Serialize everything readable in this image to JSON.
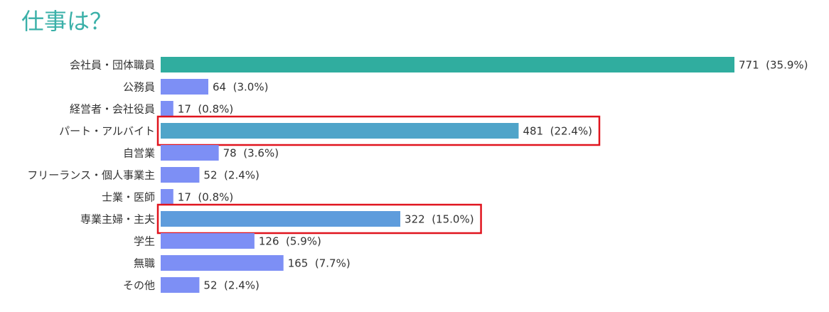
{
  "chart_data": {
    "type": "bar",
    "orientation": "horizontal",
    "title": "仕事は？",
    "categories": [
      "会社員・団体職員",
      "公務員",
      "経営者・会社役員",
      "パート・アルバイト",
      "自営業",
      "フリーランス・個人事業主",
      "士業・医師",
      "専業主婦・主夫",
      "学生",
      "無職",
      "その他"
    ],
    "values": [
      771,
      64,
      17,
      481,
      78,
      52,
      17,
      322,
      126,
      165,
      52
    ],
    "value_labels": [
      "771  (35.9%)",
      "64  (3.0%)",
      "17  (0.8%)",
      "481  (22.4%)",
      "78  (3.6%)",
      "52  (2.4%)",
      "17  (0.8%)",
      "322  (15.0%)",
      "126  (5.9%)",
      "165  (7.7%)",
      "52  (2.4%)"
    ],
    "colors": [
      "#30ad9f",
      "#7d8ff5",
      "#7d8ff5",
      "#4fa4c9",
      "#7d8ff5",
      "#7d8ff5",
      "#7d8ff5",
      "#5e9cdc",
      "#7d8ff5",
      "#7d8ff5",
      "#7d8ff5"
    ],
    "highlighted": [
      false,
      false,
      false,
      true,
      false,
      false,
      false,
      true,
      false,
      false,
      false
    ],
    "highlight_color": "#e0141e"
  }
}
